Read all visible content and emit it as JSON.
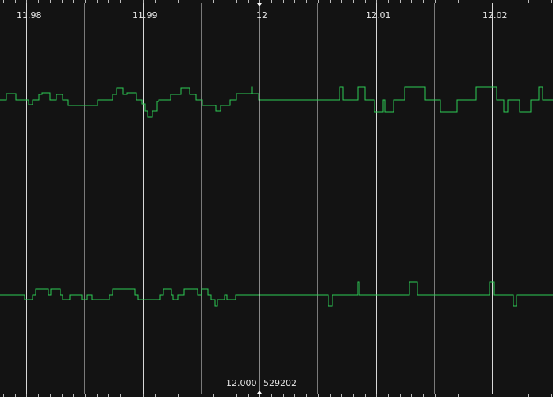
{
  "viewer": {
    "time_ticks": [
      "11.98",
      "11.99",
      "12",
      "12.01",
      "12.02"
    ],
    "cursor": {
      "time_label": "12.000",
      "sample_label": "529202"
    }
  },
  "colors": {
    "background": "#131313",
    "grid_major": "#d8d8d8",
    "grid_minor": "#7a7a7a",
    "trace": "#2ecc55",
    "text": "#e8e8e8"
  }
}
